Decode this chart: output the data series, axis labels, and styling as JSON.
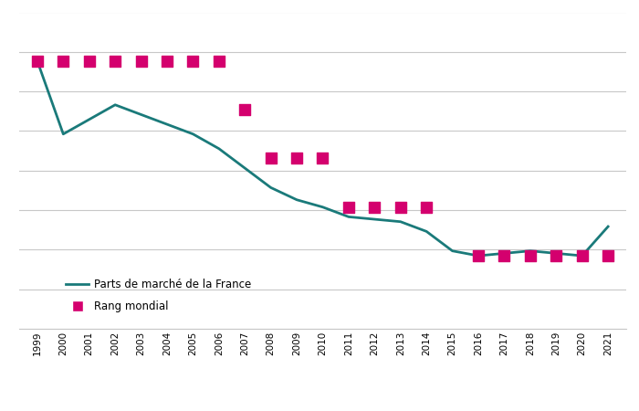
{
  "years": [
    1999,
    2000,
    2001,
    2002,
    2003,
    2004,
    2005,
    2006,
    2007,
    2008,
    2009,
    2010,
    2011,
    2012,
    2013,
    2014,
    2015,
    2016,
    2017,
    2018,
    2019,
    2020,
    2021
  ],
  "market_share_norm": [
    2.0,
    3.5,
    3.2,
    2.9,
    3.1,
    3.3,
    3.5,
    3.8,
    4.2,
    4.6,
    4.85,
    5.0,
    5.2,
    5.25,
    5.3,
    5.5,
    5.9,
    6.0,
    5.95,
    5.9,
    5.95,
    6.0,
    5.4
  ],
  "rang_years": [
    1999,
    2000,
    2001,
    2002,
    2003,
    2004,
    2005,
    2006,
    2007,
    2008,
    2009,
    2010,
    2011,
    2012,
    2013,
    2014,
    2016,
    2017,
    2018,
    2019,
    2020,
    2021
  ],
  "rang_values": [
    2,
    2,
    2,
    2,
    2,
    2,
    2,
    2,
    3,
    4,
    4,
    4,
    5,
    5,
    5,
    5,
    6,
    6,
    6,
    6,
    6,
    6
  ],
  "line_color": "#1a7a7a",
  "square_color": "#d4006e",
  "background_color": "#ffffff",
  "grid_color": "#c8c8c8",
  "legend_line_label": "Parts de marché de la France",
  "legend_square_label": "Rang mondial",
  "square_size": 80,
  "line_width": 2.0,
  "ylim": [
    1.0,
    7.5
  ],
  "n_gridlines": 9
}
